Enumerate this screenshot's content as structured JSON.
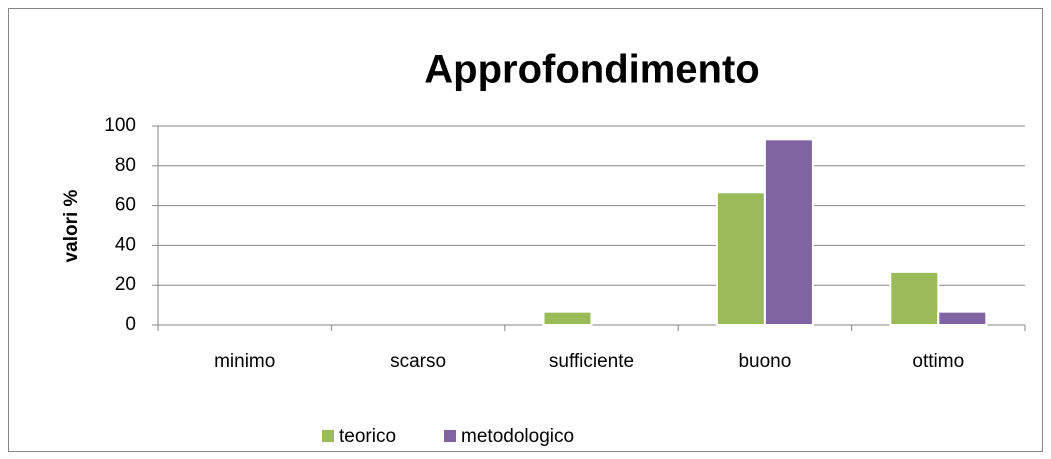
{
  "chart_data": {
    "type": "bar",
    "title": "Approfondimento",
    "y_label": "valori %",
    "categories": [
      "minimo",
      "scarso",
      "sufficiente",
      "buono",
      "ottimo"
    ],
    "series": [
      {
        "name": "teorico",
        "color": "#9bbb59",
        "values": [
          0,
          0,
          6.7,
          66.7,
          26.7
        ]
      },
      {
        "name": "metodologico",
        "color": "#8064a2",
        "values": [
          0,
          0,
          0,
          93.3,
          6.7
        ]
      }
    ],
    "ylim": [
      0,
      100
    ],
    "yticks": [
      0,
      20,
      40,
      60,
      80,
      100
    ],
    "grid": true,
    "legend": "bottom"
  }
}
